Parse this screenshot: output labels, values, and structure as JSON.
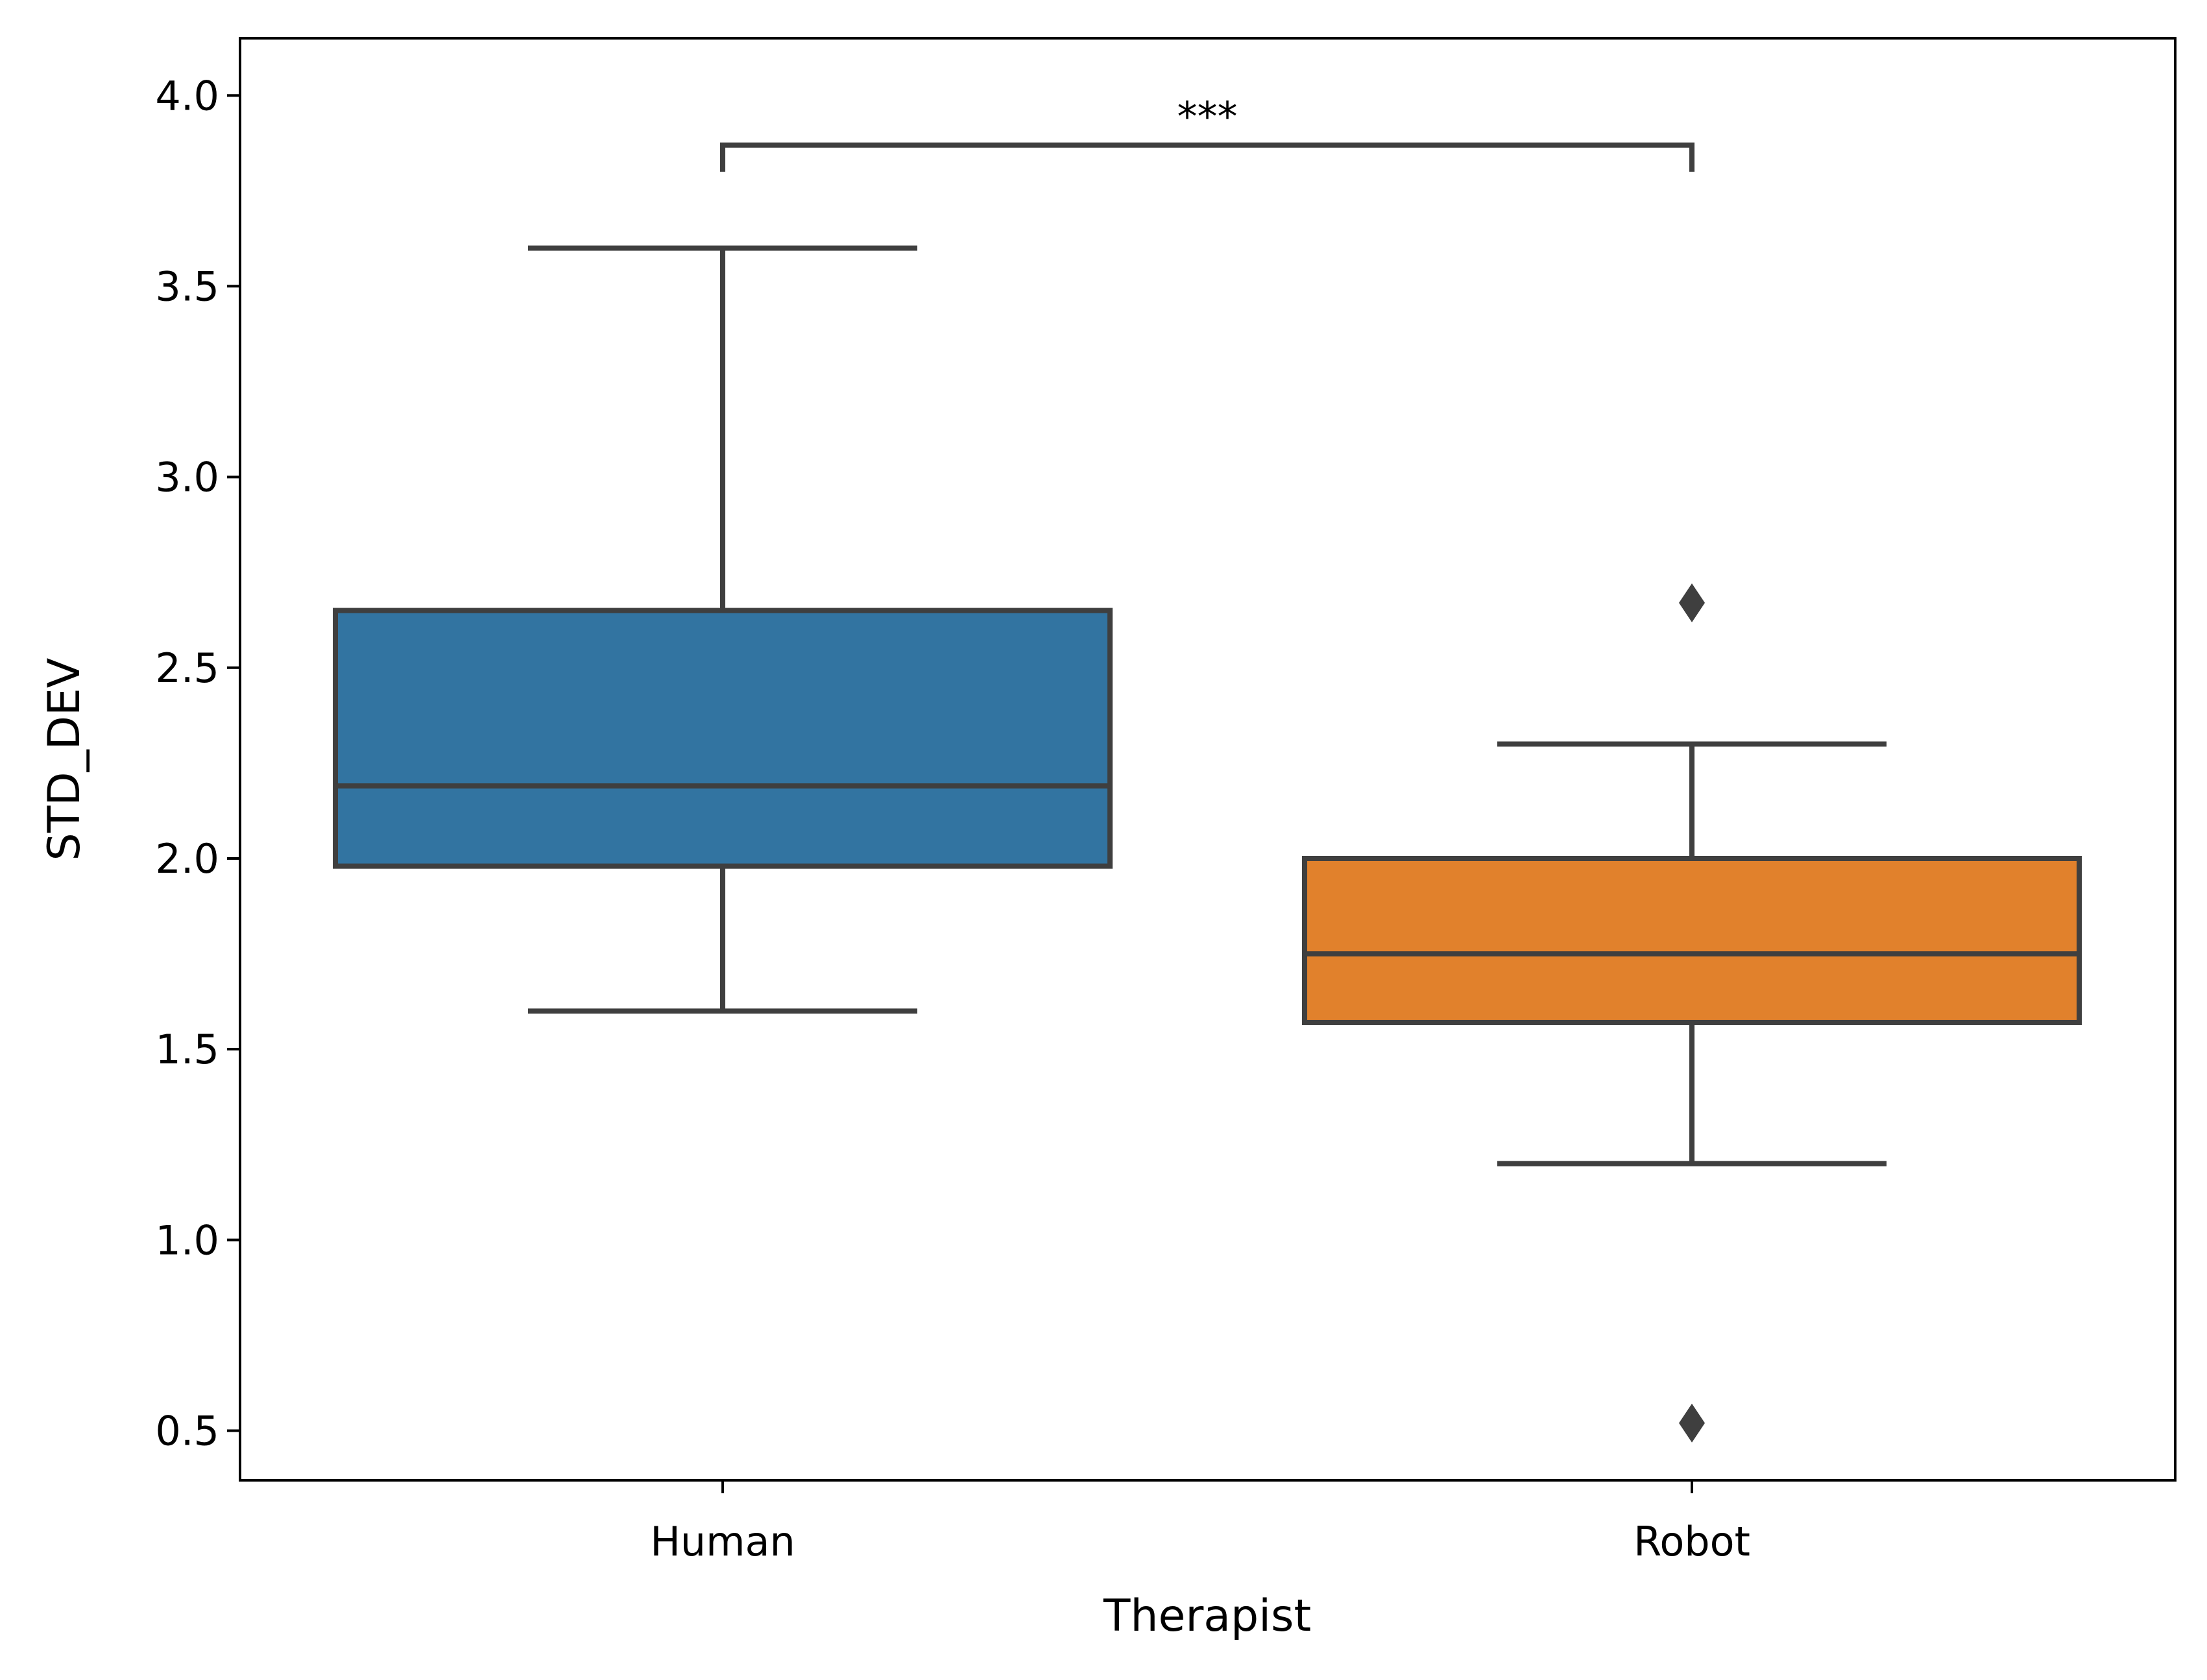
{
  "chart_data": {
    "type": "box",
    "xlabel": "Therapist",
    "ylabel": "STD_DEV",
    "ylim": [
      0.37,
      4.15
    ],
    "yticks": [
      0.5,
      1.0,
      1.5,
      2.0,
      2.5,
      3.0,
      3.5,
      4.0
    ],
    "ytick_labels": [
      "0.5",
      "1.0",
      "1.5",
      "2.0",
      "2.5",
      "3.0",
      "3.5",
      "4.0"
    ],
    "categories": [
      "Human",
      "Robot"
    ],
    "boxes": [
      {
        "name": "Human",
        "color": "#3274a1",
        "whisker_low": 1.6,
        "q1": 1.98,
        "median": 2.19,
        "q3": 2.65,
        "whisker_high": 3.6,
        "outliers": []
      },
      {
        "name": "Robot",
        "color": "#e1812c",
        "whisker_low": 1.2,
        "q1": 1.57,
        "median": 1.75,
        "q3": 2.0,
        "whisker_high": 2.3,
        "outliers": [
          2.67,
          0.52
        ]
      }
    ],
    "significance": {
      "between": [
        "Human",
        "Robot"
      ],
      "label": "***",
      "y": 3.87,
      "leg_bottom": 3.8
    },
    "line_color": "#3f3f3f"
  }
}
